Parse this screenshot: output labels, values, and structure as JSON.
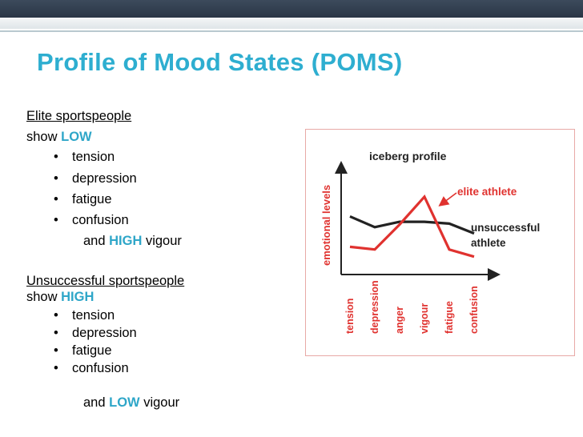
{
  "slide": {
    "title": "Profile of Mood States (POMS)",
    "elite_heading": "Elite sportspeople",
    "elite_show_prefix": "show ",
    "elite_show_level": "LOW",
    "elite_items": [
      "tension",
      "depression",
      "fatigue",
      "confusion"
    ],
    "elite_tail_prefix": "and ",
    "elite_tail_level": "HIGH",
    "elite_tail_suffix": " vigour",
    "unsucc_heading": "Unsuccessful sportspeople",
    "unsucc_show_prefix": "show ",
    "unsucc_show_level": "HIGH",
    "unsucc_items": [
      "tension",
      "depression",
      "fatigue",
      "confusion"
    ],
    "unsucc_tail_prefix": "and ",
    "unsucc_tail_level": "LOW",
    "unsucc_tail_suffix": " vigour",
    "bullet": "•",
    "accent_color": "#2eaed0"
  },
  "chart_data": {
    "type": "line",
    "title": "iceberg profile",
    "ylabel": "emotional levels",
    "categories": [
      "tension",
      "depression",
      "anger",
      "vigour",
      "fatigue",
      "confusion"
    ],
    "series": [
      {
        "name": "elite athlete",
        "color": "#e0322f",
        "values": [
          3.1,
          2.8,
          5.6,
          8.7,
          2.8,
          2.0
        ]
      },
      {
        "name": "unsuccessful athlete",
        "color": "#222222",
        "values": [
          6.5,
          5.3,
          5.9,
          5.9,
          5.7,
          4.6
        ]
      }
    ],
    "ylim": [
      0,
      12
    ],
    "grid": false,
    "legend": "inline labels"
  }
}
